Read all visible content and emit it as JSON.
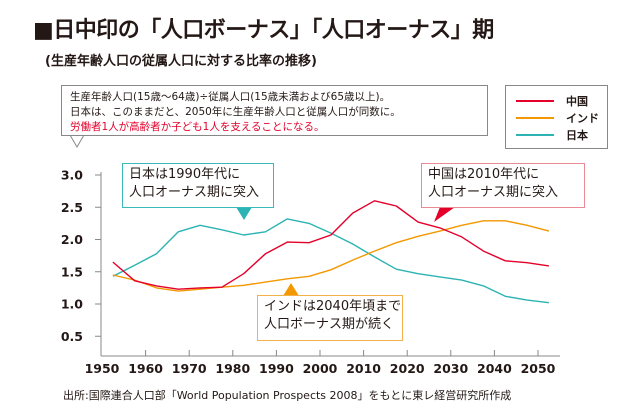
{
  "header": {
    "title": "■日中印の「人口ボーナス」「人口オーナス」期",
    "subtitle": "(生産年齢人口の従属人口に対する比率の推移)"
  },
  "note": {
    "line1": "生産年齢人口(15歳〜64歳)÷従属人口(15歳未満および65歳以上)。",
    "line2": "日本は、このままだと、2050年に生産年齢人口と従属人口が同数に。",
    "line3": "労働者1人が高齢者か子ども1人を支えることになる。"
  },
  "callouts": {
    "japan": [
      "日本は1990年代に",
      "人口オーナス期に突入"
    ],
    "china": [
      "中国は2010年代に",
      "人口オーナス期に突入"
    ],
    "india": [
      "インドは2040年頃まで",
      "人口ボーナス期が続く"
    ]
  },
  "source": "出所:国際連合人口部「World Population Prospects 2008」をもとに東レ経営研究所作成",
  "chart_data": {
    "type": "line",
    "title": "日中印の「人口ボーナス」「人口オーナス」期",
    "subtitle": "生産年齢人口の従属人口に対する比率の推移",
    "xlabel": "",
    "ylabel": "",
    "xlim": [
      1950,
      2055
    ],
    "ylim": [
      0.2,
      3.0
    ],
    "grid": false,
    "legend_position": "top-right",
    "x_ticks": [
      1950,
      1960,
      1970,
      1980,
      1990,
      2000,
      2010,
      2020,
      2030,
      2040,
      2050
    ],
    "y_ticks": [
      "0.5",
      "1.0",
      "1.5",
      "2.0",
      "2.5",
      "3.0"
    ],
    "x": [
      1952.5,
      1957.5,
      1962.5,
      1967.5,
      1972.5,
      1977.5,
      1982.5,
      1987.5,
      1992.5,
      1997.5,
      2002.5,
      2007.5,
      2012.5,
      2017.5,
      2022.5,
      2027.5,
      2032.5,
      2037.5,
      2042.5,
      2047.5,
      2052.5
    ],
    "series": [
      {
        "name": "中国",
        "color": "#e4002b",
        "values": [
          1.65,
          1.36,
          1.28,
          1.23,
          1.25,
          1.26,
          1.47,
          1.78,
          1.96,
          1.95,
          2.07,
          2.41,
          2.6,
          2.52,
          2.27,
          2.18,
          2.04,
          1.82,
          1.67,
          1.64,
          1.59
        ]
      },
      {
        "name": "インド",
        "color": "#f39800",
        "values": [
          1.45,
          1.37,
          1.25,
          1.2,
          1.23,
          1.26,
          1.29,
          1.34,
          1.39,
          1.43,
          1.53,
          1.68,
          1.82,
          1.95,
          2.05,
          2.13,
          2.22,
          2.29,
          2.29,
          2.22,
          2.13
        ]
      },
      {
        "name": "日本",
        "color": "#2db3b3",
        "values": [
          1.43,
          1.6,
          1.78,
          2.12,
          2.22,
          2.15,
          2.07,
          2.12,
          2.32,
          2.25,
          2.1,
          1.93,
          1.73,
          1.54,
          1.47,
          1.42,
          1.37,
          1.28,
          1.12,
          1.06,
          1.02
        ]
      }
    ],
    "annotations": [
      {
        "text": "日本は1990年代に人口オーナス期に突入",
        "points_to_year": 1982
      },
      {
        "text": "中国は2010年代に人口オーナス期に突入",
        "points_to_year": 2020
      },
      {
        "text": "インドは2040年頃まで人口ボーナス期が続く",
        "points_to_year": 1993
      }
    ]
  }
}
